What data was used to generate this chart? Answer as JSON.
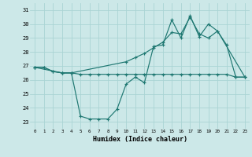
{
  "xlabel": "Humidex (Indice chaleur)",
  "bg_color": "#cce8e8",
  "line_color": "#1f7872",
  "grid_color": "#aad4d4",
  "x_min": -0.5,
  "x_max": 23.5,
  "y_min": 22.5,
  "y_max": 31.5,
  "yticks": [
    23,
    24,
    25,
    26,
    27,
    28,
    29,
    30,
    31
  ],
  "xticks": [
    0,
    1,
    2,
    3,
    4,
    5,
    6,
    7,
    8,
    9,
    10,
    11,
    12,
    13,
    14,
    15,
    16,
    17,
    18,
    19,
    20,
    21,
    22,
    23
  ],
  "curve1_x": [
    0,
    1,
    2,
    3,
    4,
    5,
    6,
    7,
    8,
    9,
    10,
    11,
    12,
    13,
    14,
    15,
    16,
    17,
    18,
    19,
    20,
    21,
    22,
    23
  ],
  "curve1_y": [
    26.9,
    26.9,
    26.6,
    26.5,
    26.5,
    23.4,
    23.2,
    23.2,
    23.2,
    23.9,
    25.7,
    26.2,
    25.8,
    28.4,
    28.5,
    30.3,
    29.0,
    30.6,
    29.1,
    30.0,
    29.5,
    28.5,
    26.2,
    26.2
  ],
  "curve2_x": [
    0,
    1,
    2,
    3,
    4,
    5,
    6,
    7,
    8,
    9,
    10,
    11,
    12,
    13,
    14,
    15,
    16,
    17,
    18,
    19,
    20,
    21,
    22,
    23
  ],
  "curve2_y": [
    26.9,
    26.9,
    26.6,
    26.5,
    26.5,
    26.4,
    26.4,
    26.4,
    26.4,
    26.4,
    26.4,
    26.4,
    26.4,
    26.4,
    26.4,
    26.4,
    26.4,
    26.4,
    26.4,
    26.4,
    26.4,
    26.4,
    26.2,
    26.2
  ],
  "curve3_x": [
    0,
    3,
    4,
    10,
    11,
    12,
    13,
    14,
    15,
    16,
    17,
    18,
    19,
    20,
    23
  ],
  "curve3_y": [
    26.9,
    26.5,
    26.5,
    27.3,
    27.6,
    27.9,
    28.3,
    28.7,
    29.4,
    29.3,
    30.5,
    29.3,
    29.0,
    29.5,
    26.2
  ]
}
